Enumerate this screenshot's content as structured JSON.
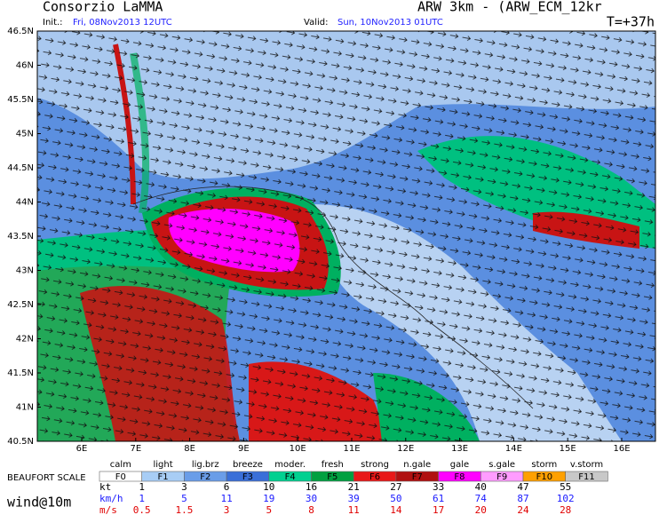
{
  "header": {
    "org": "Consorzio LaMMA",
    "model": "ARW 3km - (ARW_ECM_12kr",
    "init_label": "Init.:",
    "init": "Fri, 08Nov2013 12UTC",
    "valid_label": "Valid:",
    "valid": "Sun, 10Nov2013 01UTC",
    "lead": "T=+37h"
  },
  "map": {
    "lat_labels": [
      "46.5N",
      "46N",
      "45.5N",
      "45N",
      "44.5N",
      "44N",
      "43.5N",
      "43N",
      "42.5N",
      "42N",
      "41.5N",
      "41N",
      "40.5N"
    ],
    "lon_labels": [
      "6E",
      "7E",
      "8E",
      "9E",
      "10E",
      "11E",
      "12E",
      "13E",
      "14E",
      "15E",
      "16E"
    ]
  },
  "legend": {
    "title": "BEAUFORT SCALE",
    "field": "wind@10m",
    "names": [
      "calm",
      "light",
      "lig.brz",
      "breeze",
      "moder.",
      "fresh",
      "strong",
      "n.gale",
      "gale",
      "s.gale",
      "storm",
      "v.storm"
    ],
    "forces": [
      "F0",
      "F1",
      "F2",
      "F3",
      "F4",
      "F5",
      "F6",
      "F7",
      "F8",
      "F9",
      "F10",
      "F11"
    ],
    "colors": [
      "#ffffff",
      "#a8cdf5",
      "#6a9de8",
      "#3a6fd8",
      "#00d090",
      "#00a040",
      "#e81818",
      "#b01010",
      "#ff00ff",
      "#ff9cff",
      "#ffa000",
      "#c8c8c8"
    ],
    "units": [
      "kt",
      "km/h",
      "m/s"
    ],
    "kt": [
      1,
      3,
      6,
      10,
      16,
      21,
      27,
      33,
      40,
      47,
      55
    ],
    "kmh": [
      1,
      5,
      11,
      19,
      30,
      39,
      50,
      61,
      74,
      87,
      102
    ],
    "ms": [
      0.5,
      1.5,
      3,
      5,
      8,
      11,
      14,
      17,
      20,
      24,
      28
    ]
  }
}
